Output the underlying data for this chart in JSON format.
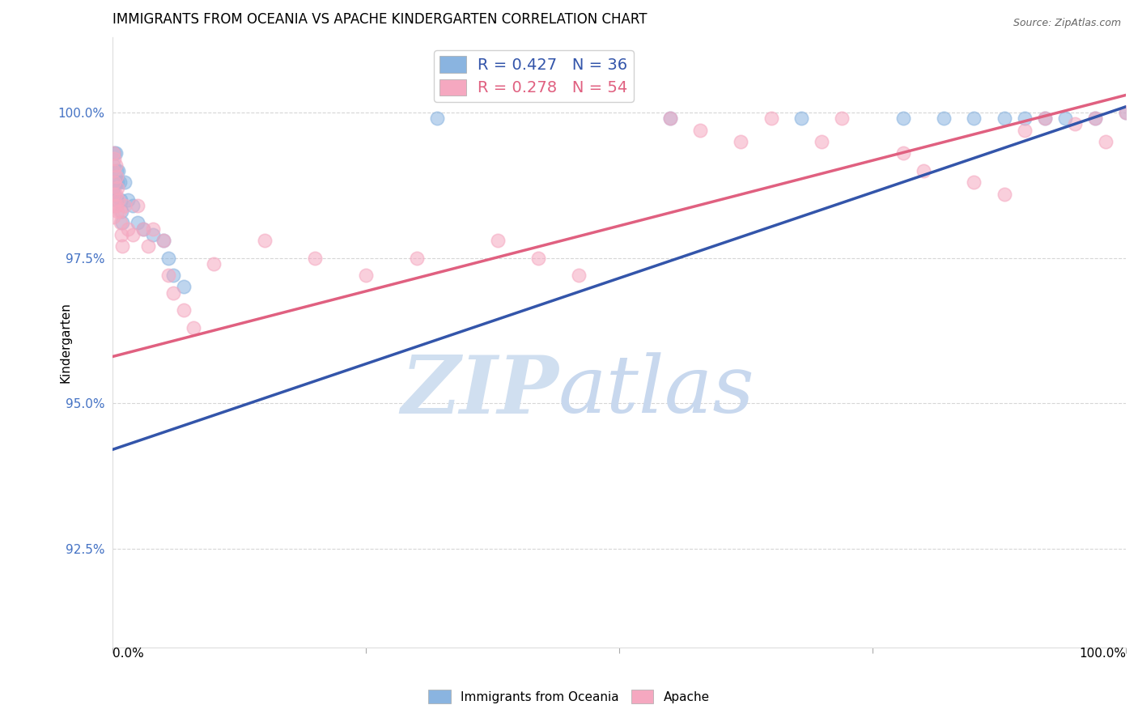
{
  "title": "IMMIGRANTS FROM OCEANIA VS APACHE KINDERGARTEN CORRELATION CHART",
  "source": "Source: ZipAtlas.com",
  "ylabel": "Kindergarten",
  "ytick_labels": [
    "100.0%",
    "97.5%",
    "95.0%",
    "92.5%"
  ],
  "ytick_values": [
    1.0,
    0.975,
    0.95,
    0.925
  ],
  "xlim": [
    0.0,
    1.0
  ],
  "ylim": [
    0.908,
    1.013
  ],
  "legend_blue_label": "R = 0.427   N = 36",
  "legend_pink_label": "R = 0.278   N = 54",
  "legend_series1": "Immigrants from Oceania",
  "legend_series2": "Apache",
  "blue_color": "#8ab4e0",
  "pink_color": "#f5a8c0",
  "blue_line_color": "#3355aa",
  "pink_line_color": "#e06080",
  "blue_line_x0": 0.0,
  "blue_line_y0": 0.942,
  "blue_line_x1": 1.0,
  "blue_line_y1": 1.001,
  "pink_line_x0": 0.0,
  "pink_line_y0": 0.958,
  "pink_line_x1": 1.0,
  "pink_line_y1": 1.003,
  "blue_x": [
    0.001,
    0.001,
    0.002,
    0.002,
    0.003,
    0.003,
    0.004,
    0.004,
    0.005,
    0.006,
    0.007,
    0.008,
    0.009,
    0.01,
    0.012,
    0.015,
    0.02,
    0.025,
    0.03,
    0.04,
    0.05,
    0.055,
    0.06,
    0.07,
    0.32,
    0.55,
    0.68,
    0.78,
    0.82,
    0.85,
    0.88,
    0.9,
    0.92,
    0.94,
    0.97,
    1.0
  ],
  "blue_y": [
    0.991,
    0.987,
    0.993,
    0.986,
    0.993,
    0.988,
    0.99,
    0.985,
    0.988,
    0.99,
    0.988,
    0.985,
    0.983,
    0.981,
    0.988,
    0.985,
    0.984,
    0.981,
    0.98,
    0.979,
    0.978,
    0.975,
    0.972,
    0.97,
    0.999,
    0.999,
    0.999,
    0.999,
    0.999,
    0.999,
    0.999,
    0.999,
    0.999,
    0.999,
    0.999,
    1.0
  ],
  "pink_x": [
    0.001,
    0.001,
    0.001,
    0.001,
    0.002,
    0.002,
    0.002,
    0.003,
    0.003,
    0.004,
    0.004,
    0.005,
    0.005,
    0.006,
    0.007,
    0.008,
    0.009,
    0.01,
    0.012,
    0.015,
    0.02,
    0.025,
    0.03,
    0.035,
    0.04,
    0.05,
    0.055,
    0.06,
    0.07,
    0.08,
    0.1,
    0.15,
    0.2,
    0.25,
    0.3,
    0.55,
    0.58,
    0.62,
    0.65,
    0.7,
    0.72,
    0.78,
    0.8,
    0.85,
    0.88,
    0.9,
    0.92,
    0.95,
    0.97,
    0.98,
    1.0,
    0.38,
    0.42,
    0.46
  ],
  "pink_y": [
    0.993,
    0.99,
    0.986,
    0.982,
    0.992,
    0.988,
    0.984,
    0.991,
    0.986,
    0.989,
    0.984,
    0.987,
    0.983,
    0.985,
    0.983,
    0.981,
    0.979,
    0.977,
    0.984,
    0.98,
    0.979,
    0.984,
    0.98,
    0.977,
    0.98,
    0.978,
    0.972,
    0.969,
    0.966,
    0.963,
    0.974,
    0.978,
    0.975,
    0.972,
    0.975,
    0.999,
    0.997,
    0.995,
    0.999,
    0.995,
    0.999,
    0.993,
    0.99,
    0.988,
    0.986,
    0.997,
    0.999,
    0.998,
    0.999,
    0.995,
    1.0,
    0.978,
    0.975,
    0.972
  ],
  "watermark_zip": "ZIP",
  "watermark_atlas": "atlas",
  "watermark_color_zip": "#d0dff0",
  "watermark_color_atlas": "#c8d8ee",
  "grid_color": "#cccccc",
  "ytick_color": "#4472c4",
  "title_fontsize": 12,
  "ylabel_fontsize": 11
}
